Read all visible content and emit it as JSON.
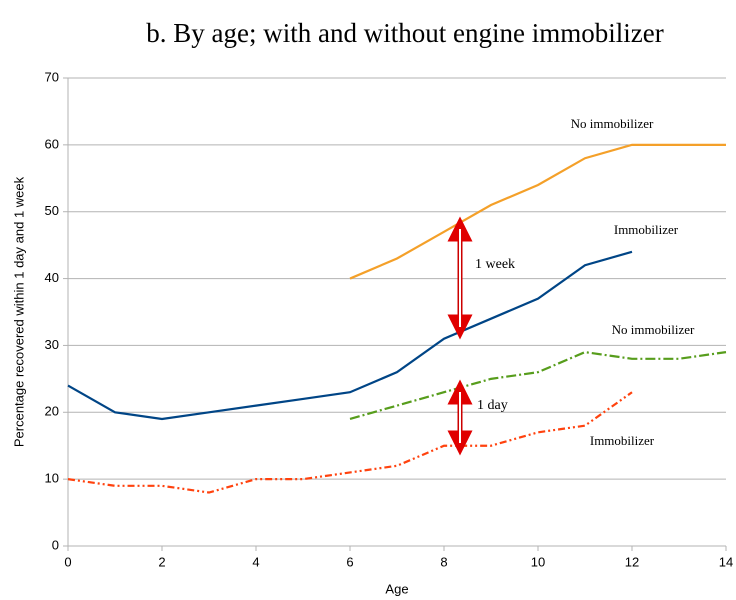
{
  "chart_data": {
    "type": "line",
    "title": "b. By age; with and without engine immobilizer",
    "xlabel": "Age",
    "ylabel": "Percentage recovered within 1 day and 1 week",
    "xlim": [
      0,
      14
    ],
    "xticks": [
      0,
      2,
      4,
      6,
      8,
      10,
      12,
      14
    ],
    "ylim": [
      0,
      70
    ],
    "yticks": [
      0,
      10,
      20,
      30,
      40,
      50,
      60,
      70
    ],
    "grid": true,
    "annotations": [
      "1 week",
      "1 day"
    ],
    "series": [
      {
        "name": "No immobilizer",
        "color": "#f4a029",
        "x": [
          6,
          7,
          8,
          9,
          10,
          11,
          12,
          13,
          14
        ],
        "values": [
          40,
          43,
          47,
          51,
          54,
          58,
          60,
          60,
          60
        ]
      },
      {
        "name": "Immobilizer",
        "color": "#004586",
        "x": [
          0,
          1,
          2,
          3,
          4,
          5,
          6,
          7,
          8,
          9,
          10,
          11,
          12
        ],
        "values": [
          24,
          20,
          19,
          20,
          21,
          22,
          23,
          26,
          31,
          34,
          37,
          42,
          44
        ]
      },
      {
        "name": "No immobilizer",
        "color": "#579d1c",
        "x": [
          6,
          7,
          8,
          9,
          10,
          11,
          12,
          13,
          14
        ],
        "values": [
          19,
          21,
          23,
          25,
          26,
          29,
          28,
          28,
          29
        ]
      },
      {
        "name": "Immobilizer",
        "color": "#ff420e",
        "x": [
          0,
          1,
          2,
          3,
          4,
          5,
          6,
          7,
          8,
          9,
          10,
          11,
          12
        ],
        "values": [
          10,
          9,
          9,
          8,
          10,
          10,
          11,
          12,
          15,
          15,
          17,
          18,
          23
        ]
      }
    ]
  }
}
